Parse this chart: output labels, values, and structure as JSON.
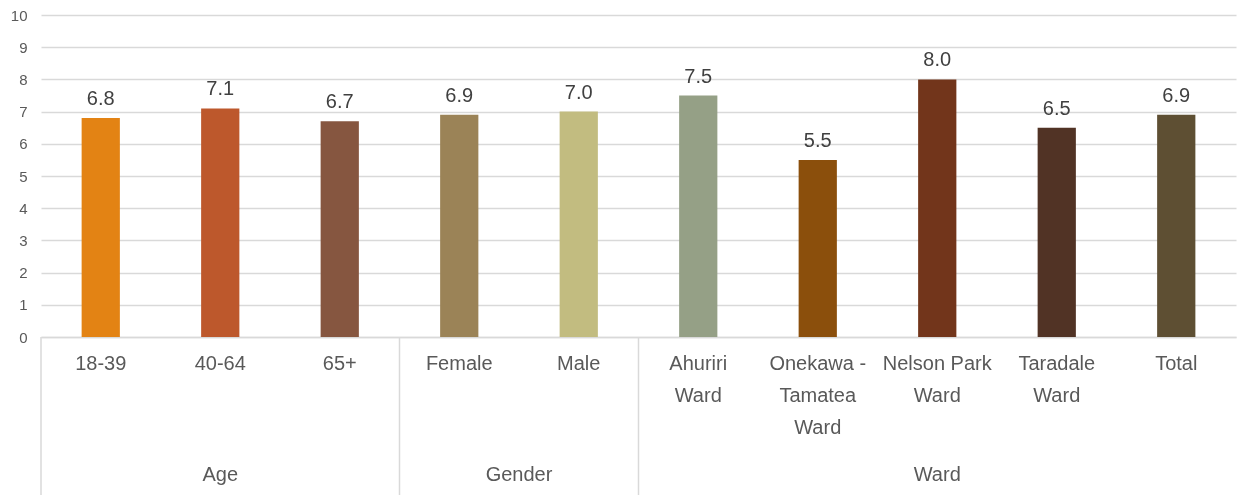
{
  "chart_data": {
    "type": "bar",
    "categories": [
      "18-39",
      "40-64",
      "65+",
      "Female",
      "Male",
      "Ahuriri Ward",
      "Onekawa - Tamatea Ward",
      "Nelson Park Ward",
      "Taradale Ward",
      "Total"
    ],
    "values": [
      6.8,
      7.1,
      6.7,
      6.9,
      7.0,
      7.5,
      5.5,
      8.0,
      6.5,
      6.9
    ],
    "value_labels": [
      "6.8",
      "7.1",
      "6.7",
      "6.9",
      "7.0",
      "7.5",
      "5.5",
      "8.0",
      "6.5",
      "6.9"
    ],
    "colors": [
      "#e38314",
      "#bd582c",
      "#865640",
      "#9b8357",
      "#c2bc80",
      "#95a086",
      "#8b4f0c",
      "#72351b",
      "#513325",
      "#5e4f33"
    ],
    "ylim": [
      0,
      10
    ],
    "yticks": [
      0,
      1,
      2,
      3,
      4,
      5,
      6,
      7,
      8,
      9,
      10
    ],
    "grid": "y",
    "annotations": [
      "Age",
      "Gender",
      "Ward"
    ]
  }
}
